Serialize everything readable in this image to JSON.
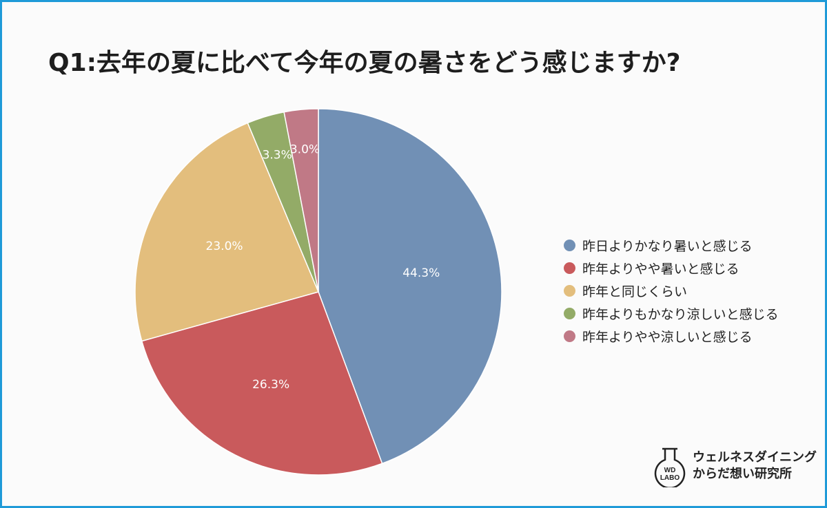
{
  "title": "Q1:去年の夏に比べて今年の夏の暑さをどう感じますか?",
  "chart_data": {
    "type": "pie",
    "title": "Q1:去年の夏に比べて今年の夏の暑さをどう感じますか?",
    "legend_position": "right",
    "slices": [
      {
        "label": "昨日よりかなり暑いと感じる",
        "value": 44.3,
        "display": "44.3%",
        "color": "#7190b5"
      },
      {
        "label": "昨年よりやや暑いと感じる",
        "value": 26.3,
        "display": "26.3%",
        "color": "#c95a5c"
      },
      {
        "label": "昨年と同じくらい",
        "value": 23.0,
        "display": "23.0%",
        "color": "#e3be7d"
      },
      {
        "label": "昨年よりもかなり涼しいと感じる",
        "value": 3.3,
        "display": "3.3%",
        "color": "#93ab67"
      },
      {
        "label": "昨年よりやや涼しいと感じる",
        "value": 3.0,
        "display": "3.0%",
        "color": "#c07986"
      }
    ]
  },
  "logo": {
    "mark_line1": "WD",
    "mark_line2": "LABO",
    "name_line1": "ウェルネスダイニング",
    "name_line2": "からだ想い研究所"
  },
  "colors": {
    "frame": "#1f9ad8",
    "background": "#fbfbfb"
  }
}
